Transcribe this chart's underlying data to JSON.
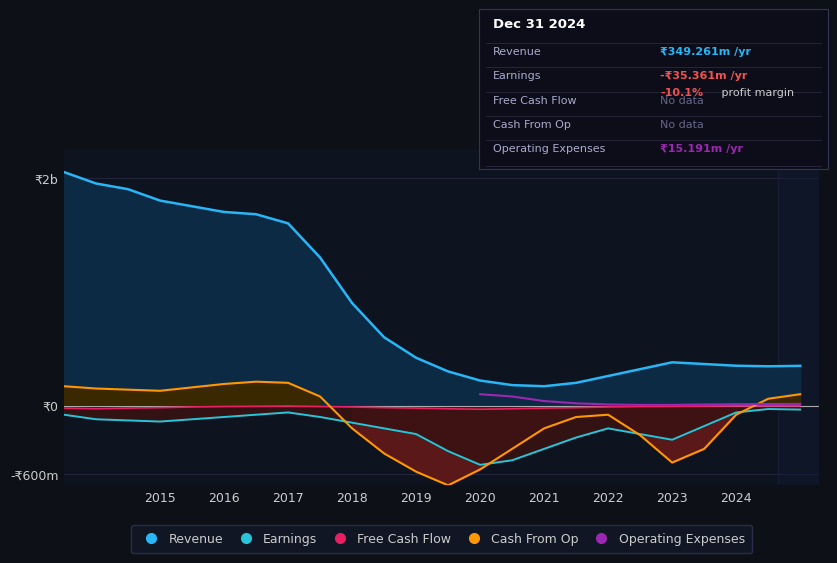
{
  "bg_color": "#0d1117",
  "plot_bg_color": "#0d1420",
  "years": [
    2013.0,
    2013.5,
    2014.0,
    2014.5,
    2015.0,
    2015.5,
    2016.0,
    2016.5,
    2017.0,
    2017.5,
    2018.0,
    2018.5,
    2019.0,
    2019.5,
    2020.0,
    2020.5,
    2021.0,
    2021.5,
    2022.0,
    2022.5,
    2023.0,
    2023.5,
    2024.0,
    2024.5,
    2025.0
  ],
  "revenue": [
    2100,
    2050,
    1950,
    1900,
    1800,
    1750,
    1700,
    1680,
    1600,
    1300,
    900,
    600,
    420,
    300,
    220,
    180,
    170,
    200,
    260,
    320,
    380,
    365,
    350,
    345,
    349
  ],
  "earnings": [
    -50,
    -80,
    -120,
    -130,
    -140,
    -120,
    -100,
    -80,
    -60,
    -100,
    -150,
    -200,
    -250,
    -400,
    -520,
    -480,
    -380,
    -280,
    -200,
    -250,
    -300,
    -180,
    -60,
    -30,
    -35
  ],
  "free_cash_flow": [
    -18,
    -22,
    -28,
    -22,
    -18,
    -12,
    -8,
    -6,
    -4,
    -8,
    -12,
    -18,
    -22,
    -28,
    -32,
    -28,
    -22,
    -18,
    -12,
    -8,
    -6,
    -4,
    -2,
    -2,
    -2
  ],
  "cash_from_op": [
    180,
    170,
    150,
    140,
    130,
    160,
    190,
    210,
    200,
    80,
    -200,
    -420,
    -580,
    -700,
    -560,
    -380,
    -200,
    -100,
    -80,
    -260,
    -500,
    -380,
    -80,
    60,
    100
  ],
  "operating_expenses": [
    0,
    0,
    0,
    0,
    0,
    0,
    0,
    0,
    0,
    0,
    0,
    0,
    0,
    0,
    100,
    80,
    40,
    20,
    10,
    6,
    6,
    10,
    12,
    14,
    15
  ],
  "revenue_line_color": "#29b6f6",
  "revenue_fill_color": "#0d2a45",
  "earnings_line_color": "#26c6da",
  "earnings_fill_color": "#3a1a1a",
  "fcf_line_color": "#e91e63",
  "cashop_line_color": "#ff9800",
  "cashop_fill_neg_color": "#5a1818",
  "cashop_fill_pos_color": "#3a2800",
  "opex_line_color": "#9c27b0",
  "ylim_min": -700,
  "ylim_max": 2250,
  "ytick_vals": [
    -600,
    0,
    2000
  ],
  "ytick_labels": [
    "-₹600m",
    "₹0",
    "₹2b"
  ],
  "xtick_vals": [
    2015,
    2016,
    2017,
    2018,
    2019,
    2020,
    2021,
    2022,
    2023,
    2024
  ],
  "info_title": "Dec 31 2024",
  "info_rows": [
    {
      "label": "Revenue",
      "value": "₹349.261m /yr",
      "vcolor": "#29b6f6",
      "extra": null,
      "ecolor": null
    },
    {
      "label": "Earnings",
      "value": "-₹35.361m /yr",
      "vcolor": "#ef5350",
      "extra": "-10.1% profit margin",
      "ecolor": "#ef5350"
    },
    {
      "label": "Free Cash Flow",
      "value": "No data",
      "vcolor": "#666688",
      "extra": null,
      "ecolor": null
    },
    {
      "label": "Cash From Op",
      "value": "No data",
      "vcolor": "#666688",
      "extra": null,
      "ecolor": null
    },
    {
      "label": "Operating Expenses",
      "value": "₹15.191m /yr",
      "vcolor": "#9c27b0",
      "extra": null,
      "ecolor": null
    }
  ],
  "legend_items": [
    {
      "label": "Revenue",
      "color": "#29b6f6"
    },
    {
      "label": "Earnings",
      "color": "#26c6da"
    },
    {
      "label": "Free Cash Flow",
      "color": "#e91e63"
    },
    {
      "label": "Cash From Op",
      "color": "#ff9800"
    },
    {
      "label": "Operating Expenses",
      "color": "#9c27b0"
    }
  ]
}
